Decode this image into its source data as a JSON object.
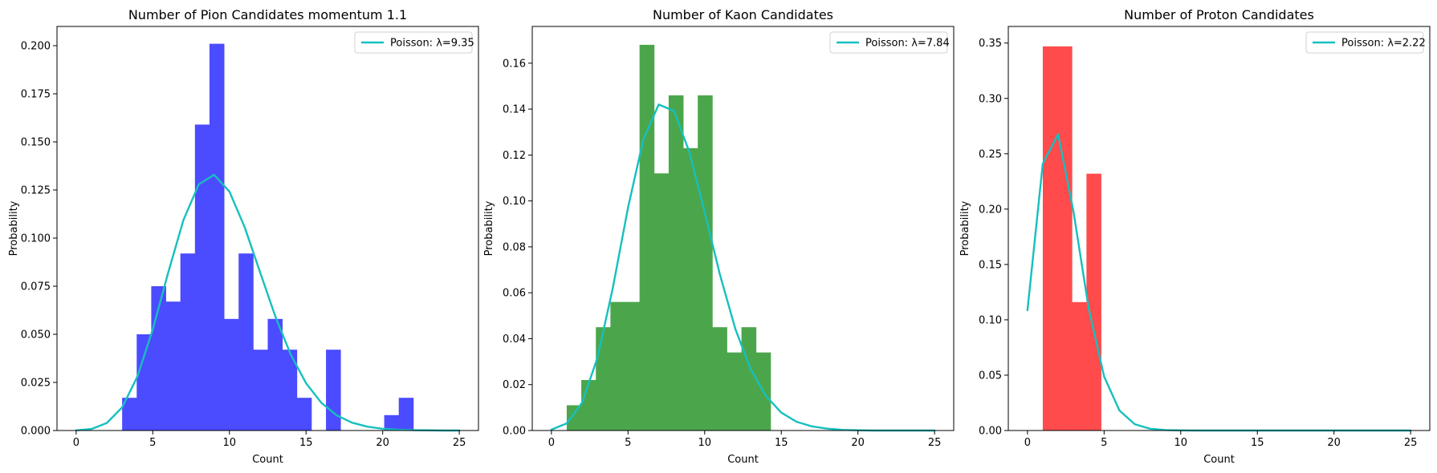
{
  "figure": {
    "background": "#ffffff"
  },
  "chart_data": [
    {
      "type": "bar",
      "title": "Number of Pion Candidates momentum 1.1",
      "xlabel": "Count",
      "ylabel": "Probability",
      "xlim": [
        -1.25,
        26.25
      ],
      "ylim": [
        0,
        0.21
      ],
      "xticks": [
        "0",
        "5",
        "10",
        "15",
        "20",
        "25"
      ],
      "xtick_values": [
        0,
        5,
        10,
        15,
        20,
        25
      ],
      "yticks": [
        "0.000",
        "0.025",
        "0.050",
        "0.075",
        "0.100",
        "0.125",
        "0.150",
        "0.175",
        "0.200"
      ],
      "ytick_values": [
        0,
        0.025,
        0.05,
        0.075,
        0.1,
        0.125,
        0.15,
        0.175,
        0.2
      ],
      "grid": false,
      "bar_color": "#4b4bff",
      "histogram": {
        "bin_edges": [
          3,
          3.95,
          4.9,
          5.85,
          6.8,
          7.75,
          8.7,
          9.65,
          10.6,
          11.55,
          12.5,
          13.45,
          14.4,
          15.35,
          16.3,
          17.25,
          18.2,
          19.15,
          20.1,
          21.05,
          22
        ],
        "values": [
          0.017,
          0.05,
          0.075,
          0.067,
          0.092,
          0.159,
          0.201,
          0.058,
          0.092,
          0.042,
          0.058,
          0.042,
          0.017,
          0,
          0.042,
          0,
          0,
          0,
          0.008,
          0.017
        ]
      },
      "series": [
        {
          "name": "Poisson: λ=9.35",
          "color": "#17bfbf",
          "x": [
            0,
            1,
            2,
            3,
            4,
            5,
            6,
            7,
            8,
            9,
            10,
            11,
            12,
            13,
            14,
            15,
            16,
            17,
            18,
            19,
            20,
            21,
            22,
            23,
            24,
            25
          ],
          "y": [
            0.0001,
            0.0008,
            0.0039,
            0.012,
            0.0281,
            0.0526,
            0.0819,
            0.1094,
            0.1279,
            0.1329,
            0.1242,
            0.1056,
            0.0823,
            0.0592,
            0.0395,
            0.0246,
            0.0144,
            0.0079,
            0.0041,
            0.002,
            0.0009,
            0.0004,
            0.0002,
            0.0001,
            0.0,
            0.0
          ]
        }
      ],
      "legend": "upper right"
    },
    {
      "type": "bar",
      "title": "Number of Kaon Candidates",
      "xlabel": "Count",
      "ylabel": "Probability",
      "xlim": [
        -1.25,
        26.25
      ],
      "ylim": [
        0,
        0.176
      ],
      "xticks": [
        "0",
        "5",
        "10",
        "15",
        "20",
        "25"
      ],
      "xtick_values": [
        0,
        5,
        10,
        15,
        20,
        25
      ],
      "yticks": [
        "0.00",
        "0.02",
        "0.04",
        "0.06",
        "0.08",
        "0.10",
        "0.12",
        "0.14",
        "0.16"
      ],
      "ytick_values": [
        0,
        0.02,
        0.04,
        0.06,
        0.08,
        0.1,
        0.12,
        0.14,
        0.16
      ],
      "grid": false,
      "bar_color": "#4ba64b",
      "histogram": {
        "bin_edges": [
          1,
          1.95,
          2.9,
          3.85,
          4.8,
          5.75,
          6.7,
          7.65,
          8.6,
          9.55,
          10.5,
          11.45,
          12.4,
          13.35,
          14.3
        ],
        "values": [
          0.011,
          0.022,
          0.045,
          0.056,
          0.056,
          0.168,
          0.112,
          0.146,
          0.123,
          0.146,
          0.045,
          0.034,
          0.045,
          0.034
        ]
      },
      "series": [
        {
          "name": "Poisson: λ=7.84",
          "color": "#17bfbf",
          "x": [
            0,
            1,
            2,
            3,
            4,
            5,
            6,
            7,
            8,
            9,
            10,
            11,
            12,
            13,
            14,
            15,
            16,
            17,
            18,
            19,
            20,
            21,
            22,
            23,
            24,
            25
          ],
          "y": [
            0.0004,
            0.0031,
            0.0121,
            0.0316,
            0.0619,
            0.0971,
            0.1268,
            0.142,
            0.1392,
            0.1213,
            0.0951,
            0.0678,
            0.0443,
            0.0267,
            0.015,
            0.0078,
            0.0038,
            0.0018,
            0.0008,
            0.0003,
            0.0001,
            0.0,
            0.0,
            0.0,
            0.0,
            0.0
          ]
        }
      ],
      "legend": "upper right"
    },
    {
      "type": "bar",
      "title": "Number of Proton Candidates",
      "xlabel": "Count",
      "ylabel": "Probability",
      "xlim": [
        -1.25,
        26.25
      ],
      "ylim": [
        0,
        0.365
      ],
      "xticks": [
        "0",
        "5",
        "10",
        "15",
        "20",
        "25"
      ],
      "xtick_values": [
        0,
        5,
        10,
        15,
        20,
        25
      ],
      "yticks": [
        "0.00",
        "0.05",
        "0.10",
        "0.15",
        "0.20",
        "0.25",
        "0.30",
        "0.35"
      ],
      "ytick_values": [
        0,
        0.05,
        0.1,
        0.15,
        0.2,
        0.25,
        0.3,
        0.35
      ],
      "grid": false,
      "bar_color": "#ff4b4b",
      "histogram": {
        "bin_edges": [
          1,
          1.95,
          2.9,
          3.85,
          4.8
        ],
        "values": [
          0.347,
          0.347,
          0.116,
          0.232
        ]
      },
      "series": [
        {
          "name": "Poisson: λ=2.22",
          "color": "#17bfbf",
          "x": [
            0,
            1,
            2,
            3,
            4,
            5,
            6,
            7,
            8,
            9,
            10,
            11,
            12,
            13,
            14,
            15,
            16,
            17,
            18,
            19,
            20,
            21,
            22,
            23,
            24,
            25
          ],
          "y": [
            0.1086,
            0.2411,
            0.2676,
            0.198,
            0.1099,
            0.0488,
            0.0181,
            0.0057,
            0.0016,
            0.0004,
            0.0001,
            0.0,
            0.0,
            0.0,
            0.0,
            0.0,
            0.0,
            0.0,
            0.0,
            0.0,
            0.0,
            0.0,
            0.0,
            0.0,
            0.0,
            0.0
          ]
        }
      ],
      "legend": "upper right"
    }
  ]
}
